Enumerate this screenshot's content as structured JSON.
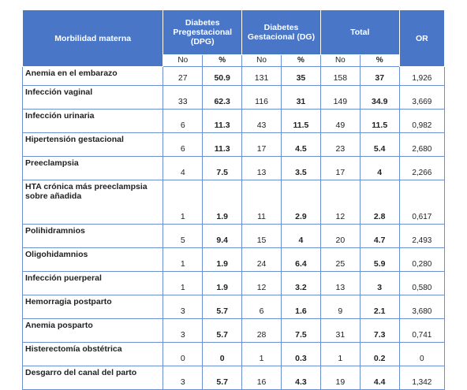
{
  "header": {
    "col1": "Morbilidad materna",
    "dpg": "Diabetes Pregestacional (DPG)",
    "dg": "Diabetes Gestacional (DG)",
    "total": "Total",
    "or": "OR",
    "no": "No",
    "pct": "%"
  },
  "rows": [
    {
      "label": "Anemia en el embarazo",
      "dpg_no": "27",
      "dpg_pct": "50.9",
      "dg_no": "131",
      "dg_pct": "35",
      "t_no": "158",
      "t_pct": "37",
      "or": "1,926"
    },
    {
      "label": "Infección vaginal",
      "dpg_no": "33",
      "dpg_pct": "62.3",
      "dg_no": "116",
      "dg_pct": "31",
      "t_no": "149",
      "t_pct": "34.9",
      "or": "3,669"
    },
    {
      "label": "Infección urinaria",
      "dpg_no": "6",
      "dpg_pct": "11.3",
      "dg_no": "43",
      "dg_pct": "11.5",
      "t_no": "49",
      "t_pct": "11.5",
      "or": "0,982"
    },
    {
      "label": "Hipertensión gestacional",
      "dpg_no": "6",
      "dpg_pct": "11.3",
      "dg_no": "17",
      "dg_pct": "4.5",
      "t_no": "23",
      "t_pct": "5.4",
      "or": "2,680"
    },
    {
      "label": "Preeclampsia",
      "dpg_no": "4",
      "dpg_pct": "7.5",
      "dg_no": "13",
      "dg_pct": "3.5",
      "t_no": "17",
      "t_pct": "4",
      "or": "2,266"
    },
    {
      "label": "HTA crónica más preeclampsia sobre añadida",
      "dpg_no": "1",
      "dpg_pct": "1.9",
      "dg_no": "11",
      "dg_pct": "2.9",
      "t_no": "12",
      "t_pct": "2.8",
      "or": "0,617"
    },
    {
      "label": "Polihidramnios",
      "dpg_no": "5",
      "dpg_pct": "9.4",
      "dg_no": "15",
      "dg_pct": "4",
      "t_no": "20",
      "t_pct": "4.7",
      "or": "2,493"
    },
    {
      "label": "Oligohidamnios",
      "dpg_no": "1",
      "dpg_pct": "1.9",
      "dg_no": "24",
      "dg_pct": "6.4",
      "t_no": "25",
      "t_pct": "5.9",
      "or": "0,280"
    },
    {
      "label": "Infección puerperal",
      "dpg_no": "1",
      "dpg_pct": "1.9",
      "dg_no": "12",
      "dg_pct": "3.2",
      "t_no": "13",
      "t_pct": "3",
      "or": "0,580"
    },
    {
      "label": "Hemorragia postparto",
      "dpg_no": "3",
      "dpg_pct": "5.7",
      "dg_no": "6",
      "dg_pct": "1.6",
      "t_no": "9",
      "t_pct": "2.1",
      "or": "3,680"
    },
    {
      "label": "Anemia posparto",
      "dpg_no": "3",
      "dpg_pct": "5.7",
      "dg_no": "28",
      "dg_pct": "7.5",
      "t_no": "31",
      "t_pct": "7.3",
      "or": "0,741"
    },
    {
      "label": "Histerectomía obstétrica",
      "dpg_no": "0",
      "dpg_pct": "0",
      "dg_no": "1",
      "dg_pct": "0.3",
      "t_no": "1",
      "t_pct": "0.2",
      "or": "0"
    },
    {
      "label": "Desgarro del canal del parto",
      "dpg_no": "3",
      "dpg_pct": "5.7",
      "dg_no": "16",
      "dg_pct": "4.3",
      "t_no": "19",
      "t_pct": "4.4",
      "or": "1,342"
    }
  ]
}
